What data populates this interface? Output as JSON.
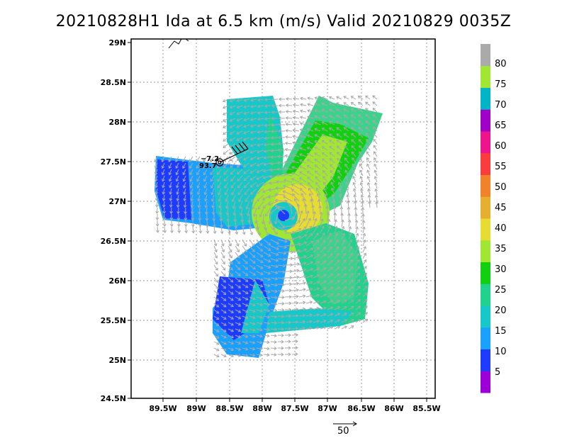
{
  "title": "20210828H1 Ida at 6.5 km (m/s) Valid 20210829 0035Z",
  "y_ticks": [
    "29N",
    "28.5N",
    "28N",
    "27.5N",
    "27N",
    "26.5N",
    "26N",
    "25.5N",
    "25N",
    "24.5N"
  ],
  "x_ticks": [
    "89.5W",
    "89W",
    "88.5W",
    "88W",
    "87.5W",
    "87W",
    "86.5W",
    "86W",
    "85.5W"
  ],
  "colorbar": {
    "labels": [
      "5",
      "10",
      "15",
      "20",
      "25",
      "30",
      "35",
      "40",
      "45",
      "50",
      "55",
      "60",
      "65",
      "70",
      "75",
      "80"
    ],
    "colors": [
      "#9b00d8",
      "#1e3cff",
      "#1aa0ff",
      "#17c8c8",
      "#20d28c",
      "#10d010",
      "#a0e632",
      "#e6dc32",
      "#e6af2d",
      "#f08228",
      "#fa3c3c",
      "#f0148c",
      "#a000c8",
      "#00b4c8",
      "#a0e632",
      "#aaaaaa"
    ]
  },
  "reference_vector_label": "50",
  "station": {
    "u": "−7.2",
    "speed": "93.7"
  },
  "map_layers": {
    "grid": true,
    "wind_field": "storm-relative wind speed shading with vectors",
    "coastline": true
  }
}
